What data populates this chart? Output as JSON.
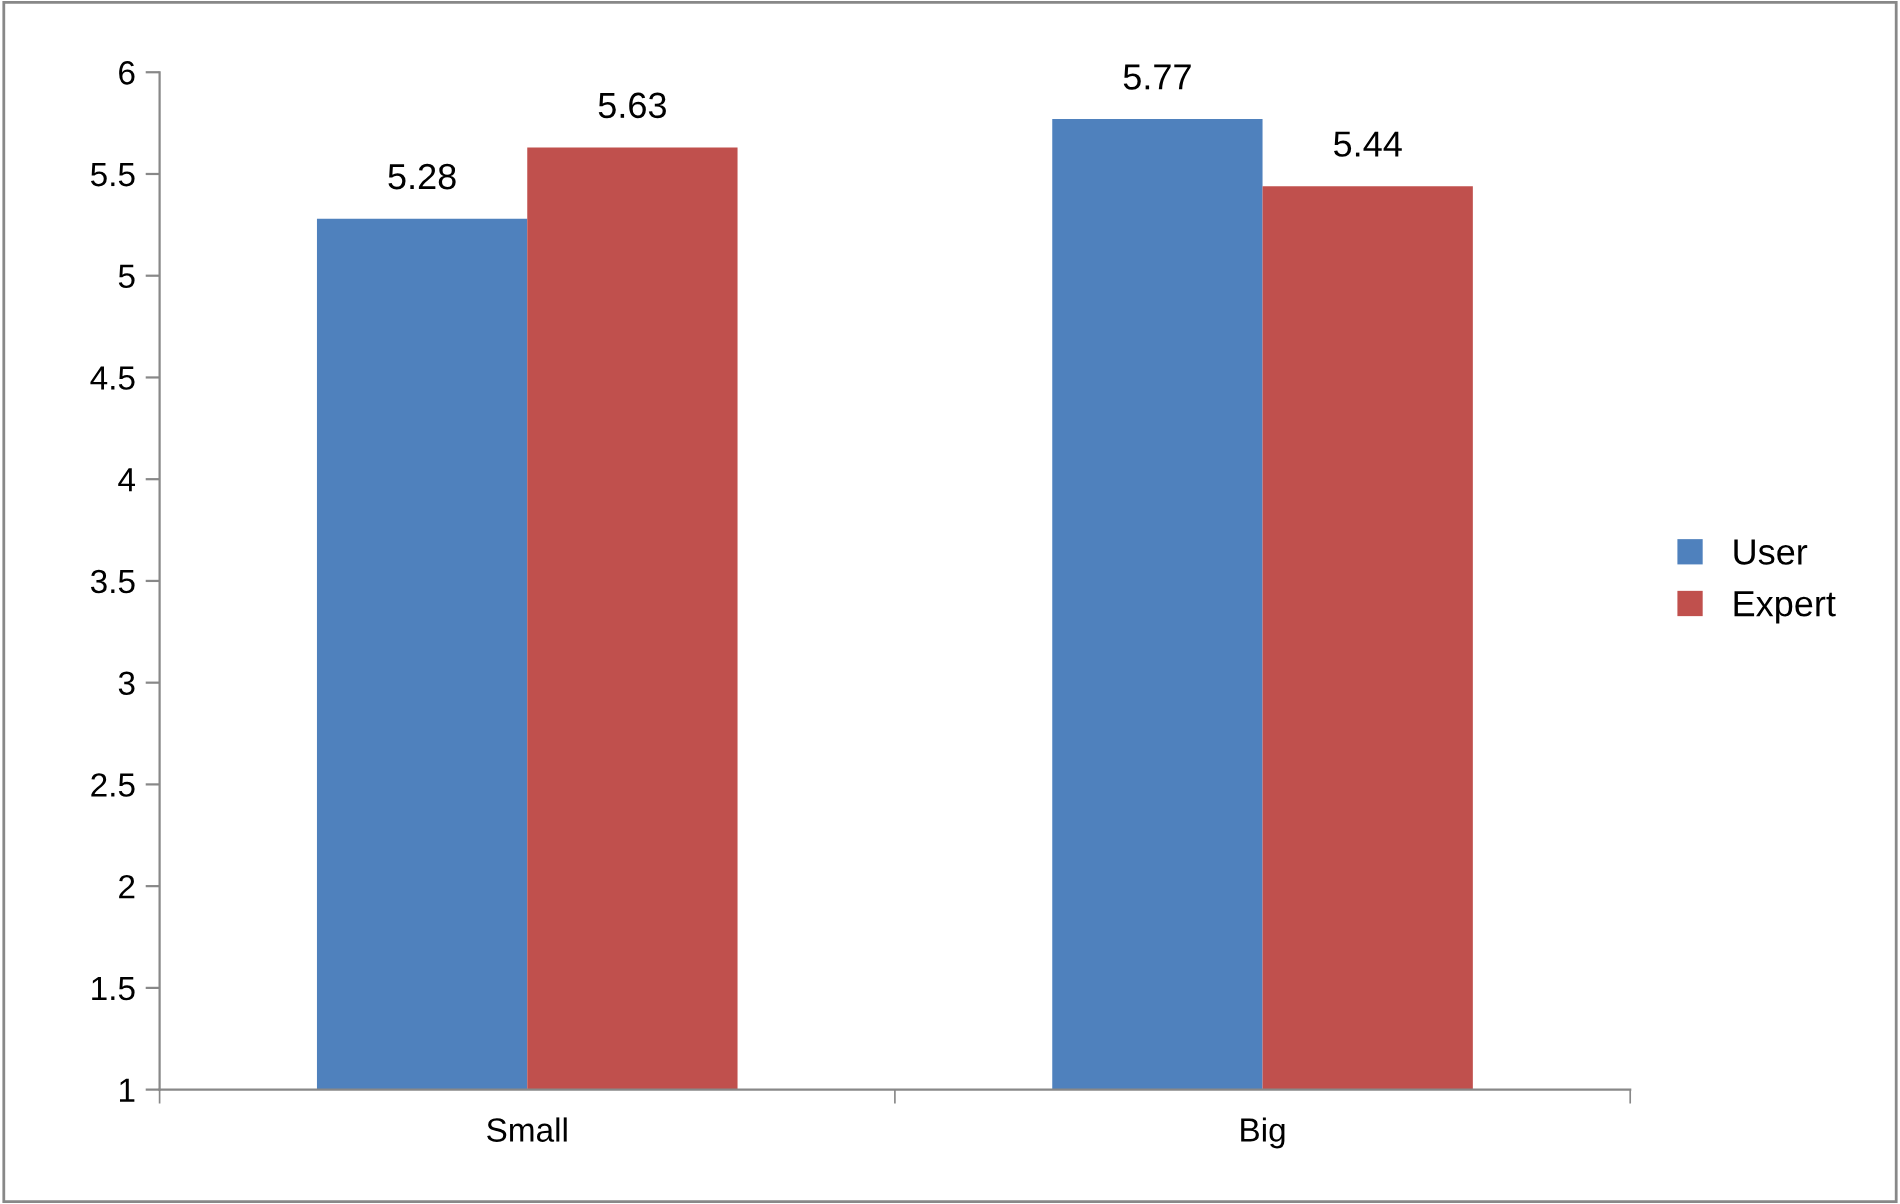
{
  "chart_data": {
    "type": "bar",
    "categories": [
      "Small",
      "Big"
    ],
    "series": [
      {
        "name": "User",
        "color": "#4f81bd",
        "values": [
          5.28,
          5.77
        ]
      },
      {
        "name": "Expert",
        "color": "#c0504d",
        "values": [
          5.63,
          5.44
        ]
      }
    ],
    "ylim": [
      1,
      6
    ],
    "yticks": [
      1,
      1.5,
      2,
      2.5,
      3,
      3.5,
      4,
      4.5,
      5,
      5.5,
      6
    ],
    "grid": false,
    "legend": "right",
    "data_labels": true
  }
}
